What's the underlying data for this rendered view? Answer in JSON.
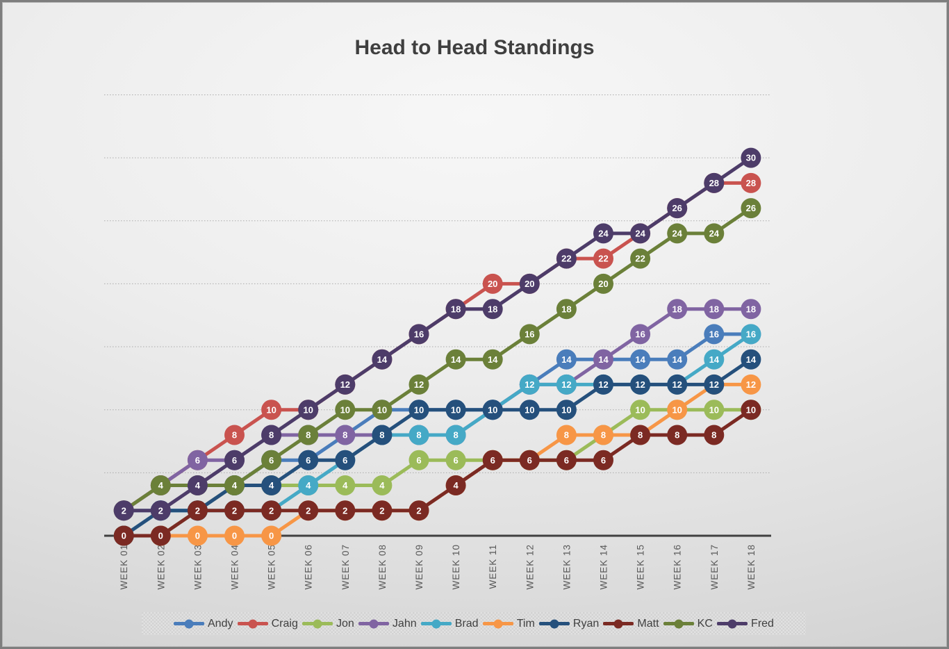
{
  "chart_data": {
    "type": "line",
    "title": "Head to Head Standings",
    "xlabel": "",
    "ylabel": "",
    "ylim": [
      0,
      35
    ],
    "gridline_values": [
      5,
      10,
      15,
      20,
      25,
      30,
      35
    ],
    "grid": true,
    "legend_position": "bottom",
    "marker_style": "filled-circle-with-value-label",
    "data_label_color": "#ffffff",
    "gridline_color": "#ababab",
    "axis_line_color": "#404040",
    "x_label_color": "#595959",
    "title_color": "#3f3f3f",
    "categories": [
      "WEEK 01",
      "WEEK 02",
      "WEEK 03",
      "WEEK 04",
      "WEEK 05",
      "WEEK 06",
      "WEEK 07",
      "WEEK 08",
      "WEEK 09",
      "WEEK 10",
      "WEEK 11",
      "WEEK 12",
      "WEEK 13",
      "WEEK 14",
      "WEEK 15",
      "WEEK 16",
      "WEEK 17",
      "WEEK 18"
    ],
    "series": [
      {
        "name": "Andy",
        "color": "#4A7DBB",
        "values": [
          2,
          2,
          2,
          4,
          6,
          6,
          8,
          10,
          10,
          10,
          10,
          12,
          14,
          14,
          14,
          14,
          16,
          16
        ]
      },
      {
        "name": "Craig",
        "color": "#C9534F",
        "values": [
          2,
          4,
          6,
          8,
          10,
          10,
          12,
          14,
          16,
          18,
          20,
          20,
          22,
          22,
          24,
          26,
          28,
          28
        ]
      },
      {
        "name": "Jon",
        "color": "#9BBB59",
        "values": [
          0,
          0,
          2,
          4,
          4,
          4,
          4,
          4,
          6,
          6,
          6,
          6,
          6,
          8,
          10,
          10,
          10,
          10
        ]
      },
      {
        "name": "Jahn",
        "color": "#8064A2",
        "values": [
          2,
          4,
          6,
          6,
          8,
          8,
          8,
          8,
          8,
          8,
          10,
          12,
          12,
          14,
          16,
          18,
          18,
          18
        ]
      },
      {
        "name": "Brad",
        "color": "#45A9C6",
        "values": [
          0,
          2,
          2,
          2,
          2,
          4,
          6,
          8,
          8,
          8,
          10,
          12,
          12,
          12,
          12,
          12,
          14,
          16
        ]
      },
      {
        "name": "Tim",
        "color": "#F79646",
        "values": [
          0,
          0,
          0,
          0,
          0,
          2,
          2,
          2,
          2,
          4,
          6,
          6,
          8,
          8,
          8,
          10,
          12,
          12
        ]
      },
      {
        "name": "Ryan",
        "color": "#25507C",
        "values": [
          0,
          2,
          2,
          4,
          4,
          6,
          6,
          8,
          10,
          10,
          10,
          10,
          10,
          12,
          12,
          12,
          12,
          14
        ]
      },
      {
        "name": "Matt",
        "color": "#7B2A23",
        "values": [
          0,
          0,
          2,
          2,
          2,
          2,
          2,
          2,
          2,
          4,
          6,
          6,
          6,
          6,
          8,
          8,
          8,
          10
        ]
      },
      {
        "name": "KC",
        "color": "#6B8039",
        "values": [
          2,
          4,
          4,
          4,
          6,
          8,
          10,
          10,
          12,
          14,
          14,
          16,
          18,
          20,
          22,
          24,
          24,
          26
        ]
      },
      {
        "name": "Fred",
        "color": "#4D3C69",
        "values": [
          2,
          2,
          4,
          6,
          8,
          10,
          12,
          14,
          16,
          18,
          18,
          20,
          22,
          24,
          24,
          26,
          28,
          30
        ]
      }
    ]
  }
}
